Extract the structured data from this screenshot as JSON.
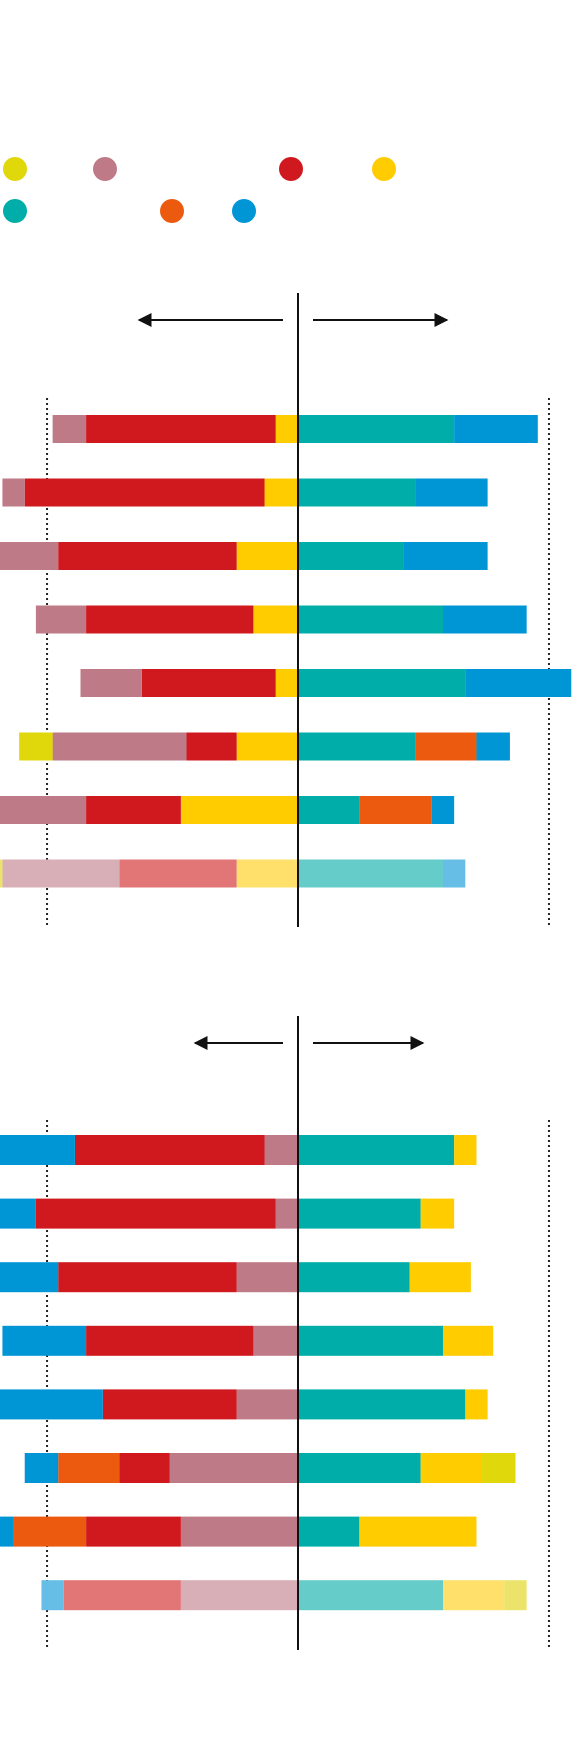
{
  "colors": {
    "yellow_green": "#e0d80a",
    "mauve": "#be7a86",
    "red": "#d0191f",
    "yellow": "#ffcc00",
    "teal": "#00ada8",
    "orange": "#ec5a10",
    "blue": "#0096d6",
    "light_yellow_green": "#ece46a",
    "light_mauve": "#d8afb6",
    "light_red": "#e27676",
    "light_yellow": "#ffe06a",
    "light_teal": "#66ccc9",
    "light_blue": "#66bde6",
    "axis": "#111111",
    "guide": "#222222"
  },
  "legend": {
    "items": [
      {
        "color": "yellow_green"
      },
      {
        "color": "mauve"
      },
      {
        "color": "red"
      },
      {
        "color": "yellow"
      },
      {
        "color": "teal"
      },
      {
        "color": "orange"
      },
      {
        "color": "blue"
      }
    ]
  },
  "chart_data": [
    {
      "type": "bar",
      "orientation": "horizontal",
      "stacking": "diverging",
      "axis_range": [
        -52,
        52
      ],
      "guide_lines": [
        -45,
        45
      ],
      "arrows": [
        "left",
        "right"
      ],
      "grid": false,
      "rows": [
        {
          "left": [
            {
              "color": "yellow",
              "value": 4
            },
            {
              "color": "red",
              "value": 34
            },
            {
              "color": "mauve",
              "value": 6
            }
          ],
          "right": [
            {
              "color": "teal",
              "value": 28
            },
            {
              "color": "blue",
              "value": 15
            }
          ]
        },
        {
          "left": [
            {
              "color": "yellow",
              "value": 6
            },
            {
              "color": "red",
              "value": 43
            },
            {
              "color": "mauve",
              "value": 4
            }
          ],
          "right": [
            {
              "color": "teal",
              "value": 21
            },
            {
              "color": "blue",
              "value": 13
            }
          ]
        },
        {
          "left": [
            {
              "color": "yellow",
              "value": 11
            },
            {
              "color": "red",
              "value": 32
            },
            {
              "color": "mauve",
              "value": 11
            }
          ],
          "right": [
            {
              "color": "teal",
              "value": 19
            },
            {
              "color": "blue",
              "value": 15
            }
          ]
        },
        {
          "left": [
            {
              "color": "yellow",
              "value": 8
            },
            {
              "color": "red",
              "value": 30
            },
            {
              "color": "mauve",
              "value": 9
            }
          ],
          "right": [
            {
              "color": "teal",
              "value": 26
            },
            {
              "color": "blue",
              "value": 15
            }
          ]
        },
        {
          "left": [
            {
              "color": "yellow",
              "value": 4
            },
            {
              "color": "red",
              "value": 24
            },
            {
              "color": "mauve",
              "value": 11
            }
          ],
          "right": [
            {
              "color": "teal",
              "value": 30
            },
            {
              "color": "blue",
              "value": 19
            }
          ]
        },
        {
          "left": [
            {
              "color": "yellow",
              "value": 11
            },
            {
              "color": "red",
              "value": 9
            },
            {
              "color": "mauve",
              "value": 24
            },
            {
              "color": "yellow_green",
              "value": 6
            }
          ],
          "right": [
            {
              "color": "teal",
              "value": 21
            },
            {
              "color": "orange",
              "value": 11
            },
            {
              "color": "blue",
              "value": 6
            }
          ]
        },
        {
          "left": [
            {
              "color": "yellow",
              "value": 21
            },
            {
              "color": "red",
              "value": 17
            },
            {
              "color": "mauve",
              "value": 21
            }
          ],
          "right": [
            {
              "color": "teal",
              "value": 11
            },
            {
              "color": "orange",
              "value": 13
            },
            {
              "color": "blue",
              "value": 4
            }
          ]
        },
        {
          "left": [
            {
              "color": "light_yellow",
              "value": 11
            },
            {
              "color": "light_red",
              "value": 21
            },
            {
              "color": "light_mauve",
              "value": 21
            },
            {
              "color": "light_yellow_green",
              "value": 4
            }
          ],
          "right": [
            {
              "color": "light_teal",
              "value": 26
            },
            {
              "color": "light_blue",
              "value": 4
            }
          ]
        }
      ]
    },
    {
      "type": "bar",
      "orientation": "horizontal",
      "stacking": "diverging",
      "axis_range": [
        -52,
        52
      ],
      "guide_lines": [
        -45,
        45
      ],
      "arrows": [
        "left",
        "right"
      ],
      "grid": false,
      "rows": [
        {
          "left": [
            {
              "color": "mauve",
              "value": 6
            },
            {
              "color": "red",
              "value": 34
            },
            {
              "color": "blue",
              "value": 15
            }
          ],
          "right": [
            {
              "color": "teal",
              "value": 28
            },
            {
              "color": "yellow",
              "value": 4
            }
          ]
        },
        {
          "left": [
            {
              "color": "mauve",
              "value": 4
            },
            {
              "color": "red",
              "value": 43
            },
            {
              "color": "blue",
              "value": 13
            }
          ],
          "right": [
            {
              "color": "teal",
              "value": 22
            },
            {
              "color": "yellow",
              "value": 6
            }
          ]
        },
        {
          "left": [
            {
              "color": "mauve",
              "value": 11
            },
            {
              "color": "red",
              "value": 32
            },
            {
              "color": "blue",
              "value": 15
            }
          ],
          "right": [
            {
              "color": "teal",
              "value": 20
            },
            {
              "color": "yellow",
              "value": 11
            }
          ]
        },
        {
          "left": [
            {
              "color": "mauve",
              "value": 8
            },
            {
              "color": "red",
              "value": 30
            },
            {
              "color": "blue",
              "value": 15
            }
          ],
          "right": [
            {
              "color": "teal",
              "value": 26
            },
            {
              "color": "yellow",
              "value": 9
            }
          ]
        },
        {
          "left": [
            {
              "color": "mauve",
              "value": 11
            },
            {
              "color": "red",
              "value": 24
            },
            {
              "color": "blue",
              "value": 19
            }
          ],
          "right": [
            {
              "color": "teal",
              "value": 30
            },
            {
              "color": "yellow",
              "value": 4
            }
          ]
        },
        {
          "left": [
            {
              "color": "mauve",
              "value": 23
            },
            {
              "color": "red",
              "value": 9
            },
            {
              "color": "orange",
              "value": 11
            },
            {
              "color": "blue",
              "value": 6
            }
          ],
          "right": [
            {
              "color": "teal",
              "value": 22
            },
            {
              "color": "yellow",
              "value": 11
            },
            {
              "color": "yellow_green",
              "value": 6
            }
          ]
        },
        {
          "left": [
            {
              "color": "mauve",
              "value": 21
            },
            {
              "color": "red",
              "value": 17
            },
            {
              "color": "orange",
              "value": 13
            },
            {
              "color": "blue",
              "value": 4
            }
          ],
          "right": [
            {
              "color": "teal",
              "value": 11
            },
            {
              "color": "yellow",
              "value": 21
            }
          ]
        },
        {
          "left": [
            {
              "color": "light_mauve",
              "value": 21
            },
            {
              "color": "light_red",
              "value": 21
            },
            {
              "color": "light_blue",
              "value": 4
            }
          ],
          "right": [
            {
              "color": "light_teal",
              "value": 26
            },
            {
              "color": "light_yellow",
              "value": 11
            },
            {
              "color": "light_yellow_green",
              "value": 4
            }
          ]
        }
      ]
    }
  ]
}
